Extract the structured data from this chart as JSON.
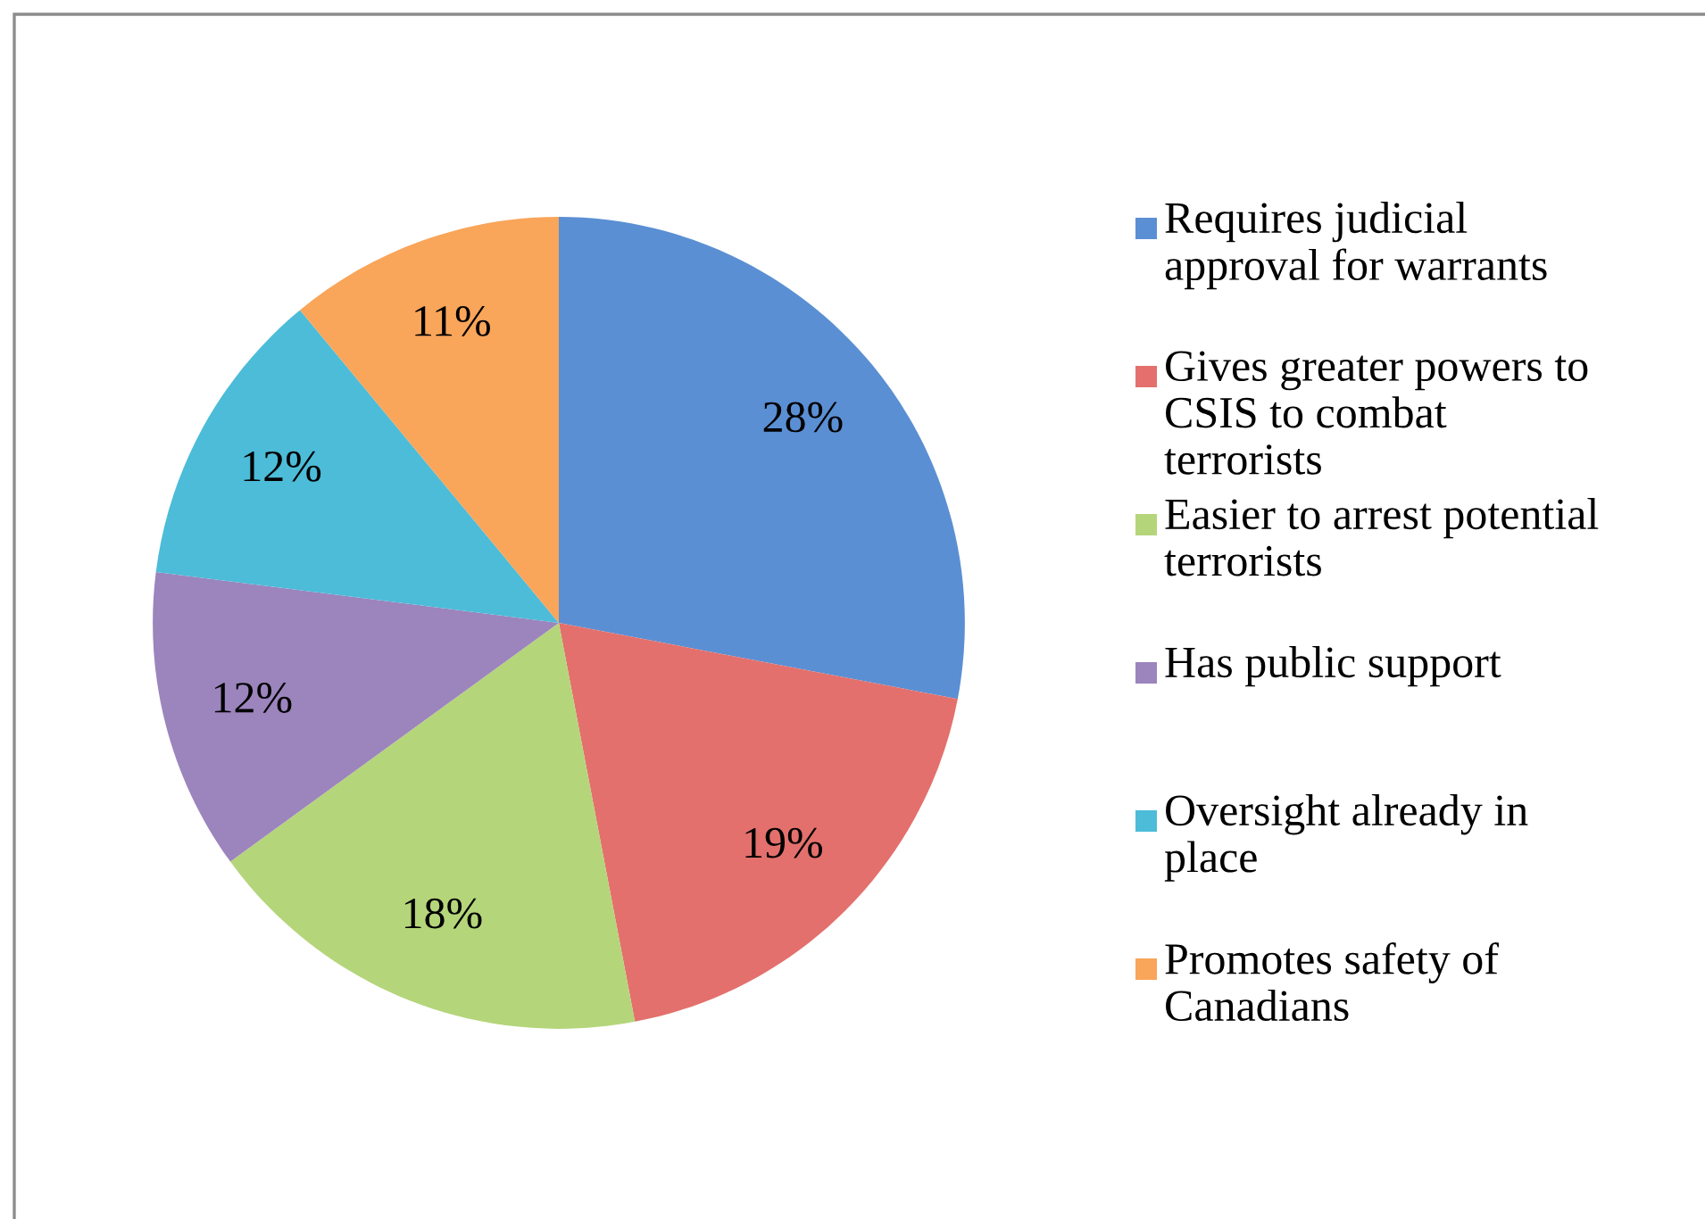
{
  "chart_data": {
    "type": "pie",
    "categories": [
      "Requires judicial approval for warrants",
      "Gives greater powers to CSIS to combat terrorists",
      "Easier to arrest potential terrorists",
      "Has public support",
      "Oversight already in place",
      "Promotes safety of Canadians"
    ],
    "values": [
      28,
      19,
      18,
      12,
      12,
      11
    ],
    "colors": [
      "#5b8fd3",
      "#e3706c",
      "#b5d57a",
      "#9c84bd",
      "#4cbcd8",
      "#f9a55a"
    ],
    "value_labels": [
      "28%",
      "19%",
      "18%",
      "12%",
      "12%",
      "11%"
    ],
    "legend": "right"
  }
}
